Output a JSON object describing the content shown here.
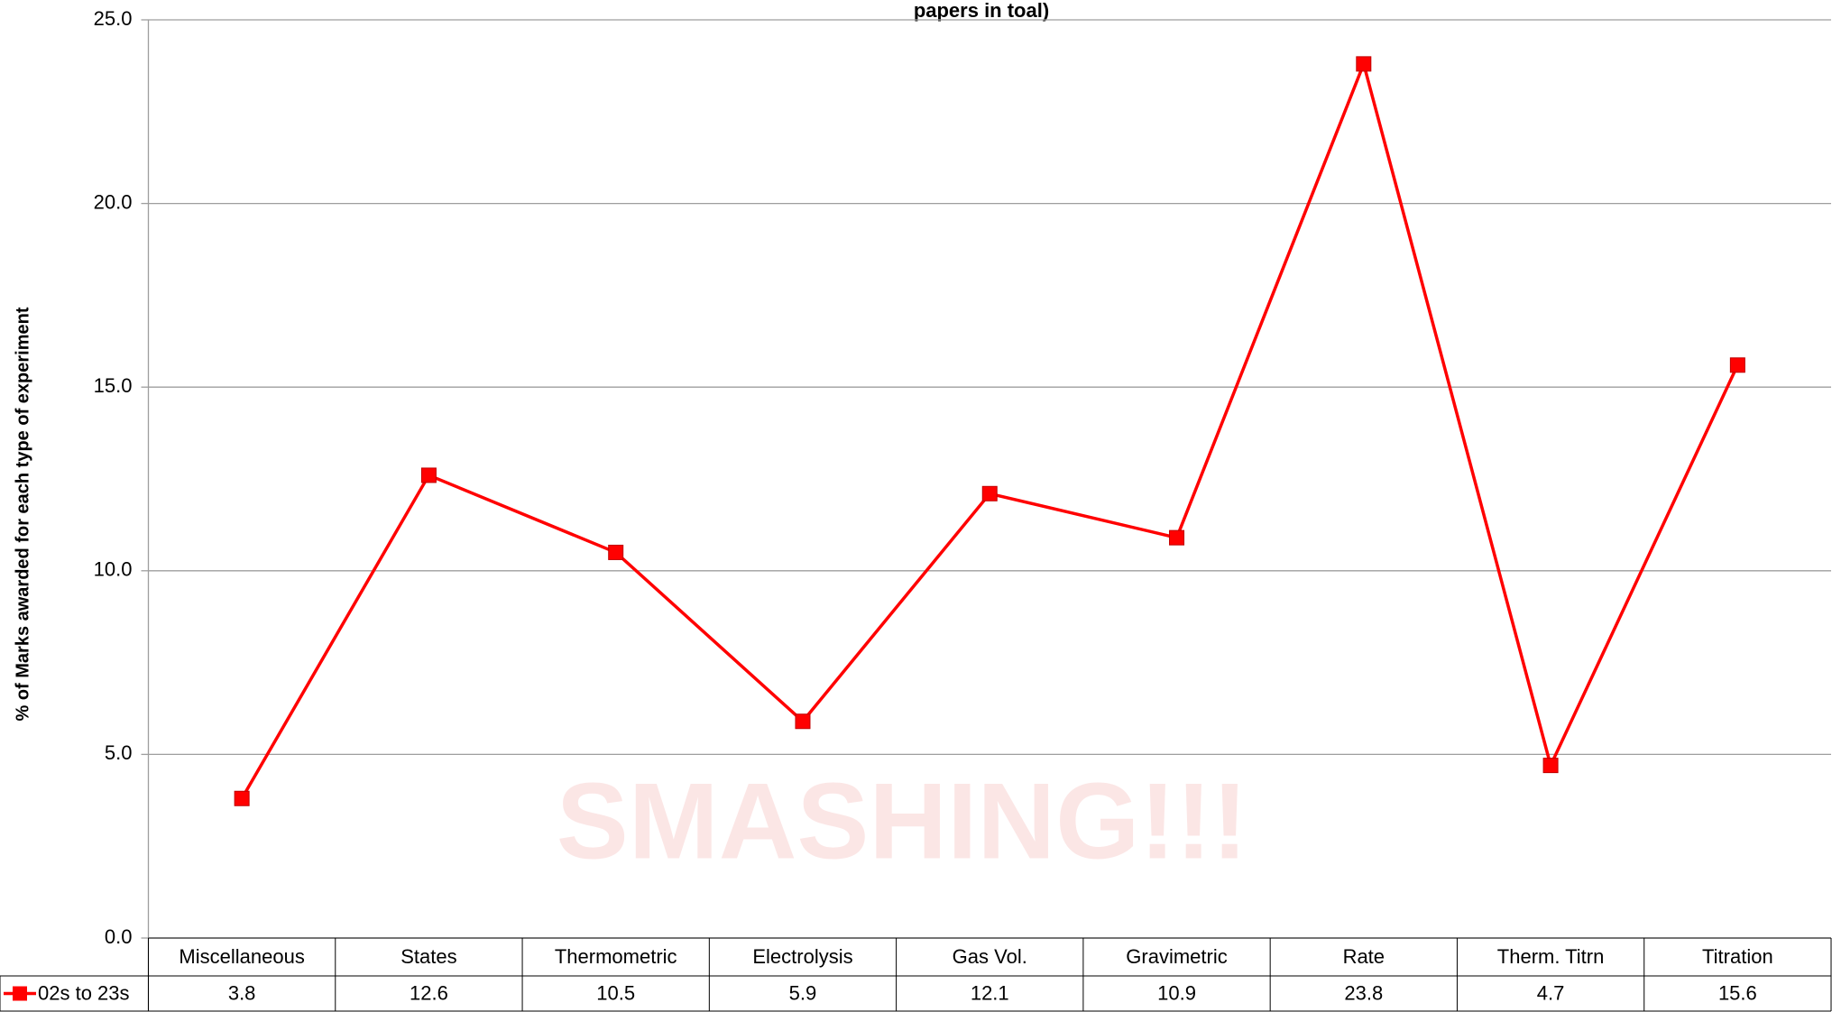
{
  "chart_data": {
    "type": "line",
    "title": "papers in toal)",
    "y_label": "% of Marks awarded for each type of experiment",
    "watermark": "SMASHING!!!",
    "categories": [
      "Miscellaneous",
      "States",
      "Thermometric",
      "Electrolysis",
      "Gas Vol.",
      "Gravimetric",
      "Rate",
      "Therm. Titrn",
      "Titration"
    ],
    "series": [
      {
        "name": "02s to 23s",
        "color": "#ff0000",
        "values": [
          3.8,
          12.6,
          10.5,
          5.9,
          12.1,
          10.9,
          23.8,
          4.7,
          15.6
        ]
      }
    ],
    "ylim": [
      0,
      25
    ],
    "yticks": [
      {
        "value": 0,
        "label": "0.0"
      },
      {
        "value": 5,
        "label": "5.0"
      },
      {
        "value": 10,
        "label": "10.0"
      },
      {
        "value": 15,
        "label": "15.0"
      },
      {
        "value": 20,
        "label": "20.0"
      },
      {
        "value": 25,
        "label": "25.0"
      }
    ],
    "grid": true,
    "data_table": true
  }
}
